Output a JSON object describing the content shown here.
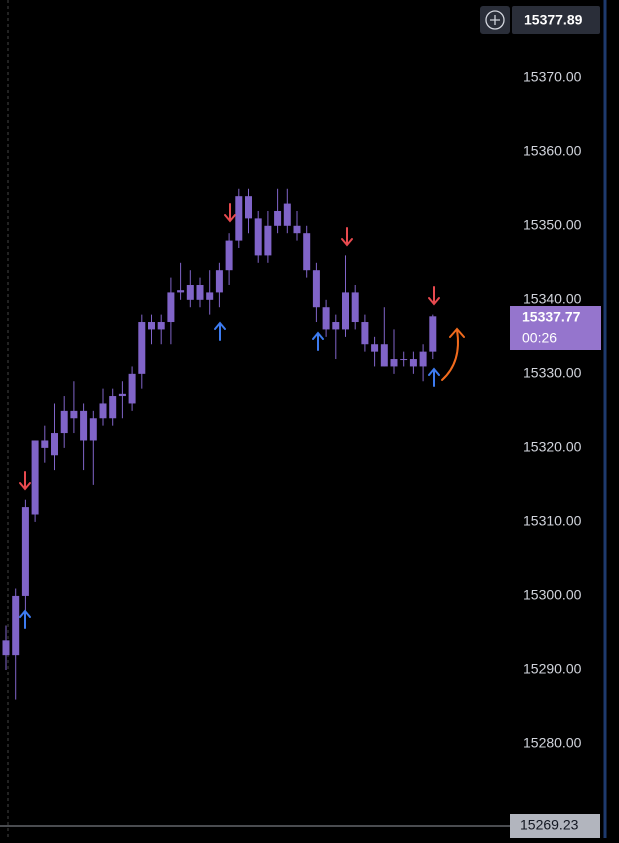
{
  "chart_data": {
    "type": "candlestick",
    "color": "#8064c8",
    "ylim": [
      15267.3,
      15380.5
    ],
    "yticks": [
      {
        "value": 15370,
        "label": "15370.00"
      },
      {
        "value": 15360,
        "label": "15360.00"
      },
      {
        "value": 15350,
        "label": "15350.00"
      },
      {
        "value": 15340,
        "label": "15340.00"
      },
      {
        "value": 15330,
        "label": "15330.00"
      },
      {
        "value": 15320,
        "label": "15320.00"
      },
      {
        "value": 15310,
        "label": "15310.00"
      },
      {
        "value": 15300,
        "label": "15300.00"
      },
      {
        "value": 15290,
        "label": "15290.00"
      },
      {
        "value": 15280,
        "label": "15280.00"
      }
    ],
    "open": [
      15294,
      15292,
      15300,
      15311,
      15321,
      15319,
      15322,
      15324,
      15325,
      15321,
      15324,
      15324,
      15327,
      15326,
      15330,
      15336,
      15336,
      15337,
      15341,
      15340,
      15342,
      15340,
      15341,
      15344,
      15348,
      15354,
      15351,
      15346,
      15350,
      15353,
      15350,
      15349,
      15344,
      15339,
      15336,
      15336,
      15341,
      15337,
      15334,
      15334,
      15332,
      15332,
      15331,
      15333,
      15333
    ],
    "high": [
      15296,
      15301,
      15313,
      15321,
      15323,
      15326,
      15327,
      15329,
      15326,
      15325,
      15328,
      15328,
      15329,
      15331,
      15338,
      15338,
      15338,
      15343,
      15345,
      15344,
      15343,
      15344,
      15345,
      15349,
      15355,
      15355,
      15352,
      15352,
      15355,
      15355,
      15352,
      15350,
      15345,
      15340,
      15338,
      15346,
      15342,
      15338,
      15335,
      15339,
      15336,
      15333,
      15333,
      15334,
      15338
    ],
    "low": [
      15290,
      15286,
      15298,
      15310,
      15318,
      15317,
      15320,
      15322,
      15317,
      15315,
      15323,
      15323,
      15324,
      15325,
      15328,
      15334,
      15334,
      15334,
      15340,
      15339,
      15339,
      15338,
      15339,
      15342,
      15347,
      15349,
      15345,
      15345,
      15349,
      15349,
      15348,
      15343,
      15337,
      15335,
      15332,
      15335,
      15336,
      15333,
      15331,
      15331,
      15330,
      15331,
      15330,
      15329,
      15332
    ],
    "close": [
      15292,
      15300,
      15312,
      15321,
      15320,
      15322,
      15325,
      15325,
      15321,
      15324,
      15326,
      15327,
      15327.3,
      15330,
      15337,
      15337,
      15337,
      15341,
      15341.3,
      15342,
      15340,
      15341,
      15344,
      15348,
      15354,
      15351,
      15346,
      15350,
      15352,
      15350,
      15349,
      15344,
      15339,
      15336,
      15337,
      15341,
      15337,
      15334,
      15333,
      15331,
      15331,
      15332,
      15332,
      15331,
      15337.77
    ],
    "price_markers": [
      15377.89,
      15269.23
    ],
    "countdown": "00:26"
  }
}
